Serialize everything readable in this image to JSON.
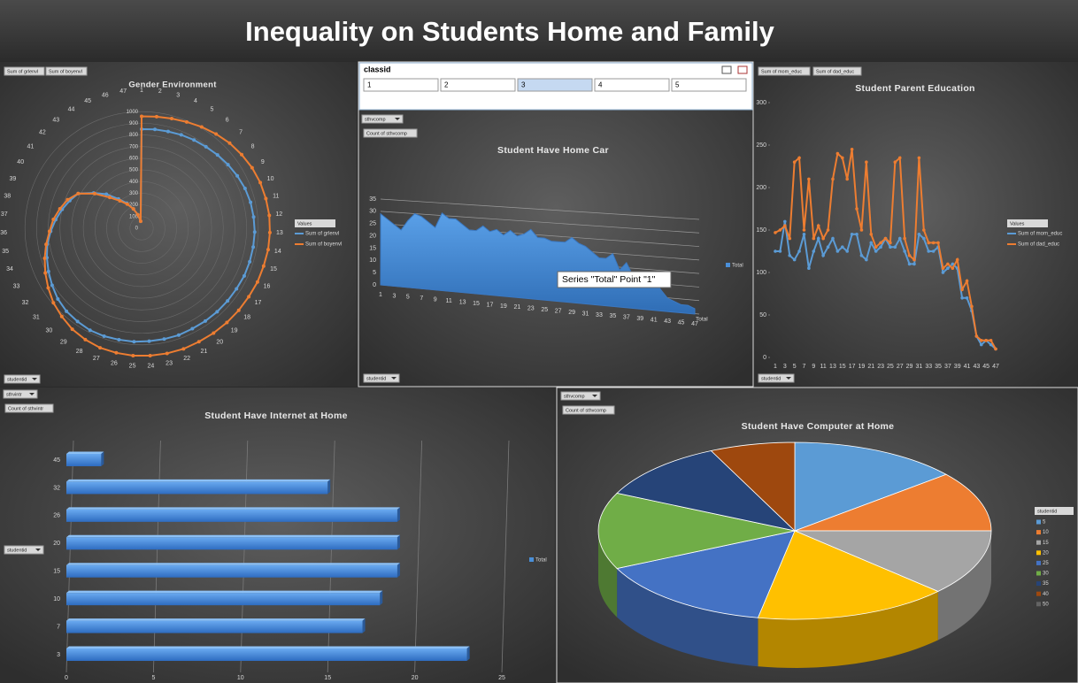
{
  "header": {
    "title": "Inequality on Students Home and Family"
  },
  "slicer": {
    "title": "classid",
    "items": [
      "1",
      "2",
      "3",
      "4",
      "5"
    ],
    "selected": "3"
  },
  "chart_data": [
    {
      "type": "radar",
      "title": "Gender Environment",
      "buttons": [
        "Sum of grlenvl",
        "Sum of boyenvl",
        "studentid"
      ],
      "legend_title": "Values",
      "categories": [
        1,
        2,
        3,
        4,
        5,
        6,
        7,
        8,
        9,
        10,
        11,
        12,
        13,
        14,
        15,
        16,
        17,
        18,
        19,
        20,
        21,
        22,
        23,
        24,
        25,
        26,
        27,
        28,
        29,
        30,
        31,
        32,
        33,
        34,
        35,
        36,
        37,
        38,
        39,
        40,
        41,
        42,
        43,
        44,
        45,
        46,
        47
      ],
      "ylim": [
        0,
        1100
      ],
      "yticks": [
        0,
        100,
        200,
        300,
        400,
        500,
        600,
        700,
        800,
        900,
        1000
      ],
      "series": [
        {
          "name": "Sum of grlenvl",
          "color": "#5b9bd5",
          "values": [
            850,
            855,
            860,
            870,
            880,
            890,
            905,
            920,
            935,
            950,
            960,
            965,
            970,
            970,
            970,
            970,
            965,
            965,
            965,
            965,
            965,
            970,
            970,
            970,
            975,
            975,
            980,
            980,
            970,
            960,
            940,
            910,
            880,
            850,
            820,
            780,
            740,
            700,
            660,
            620,
            510,
            420,
            320,
            250,
            180,
            120,
            60
          ]
        },
        {
          "name": "Sum of boyenvl",
          "color": "#ed7d31",
          "values": [
            960,
            965,
            975,
            990,
            1010,
            1030,
            1050,
            1065,
            1080,
            1090,
            1095,
            1100,
            1100,
            1100,
            1095,
            1095,
            1090,
            1090,
            1090,
            1090,
            1090,
            1095,
            1095,
            1095,
            1095,
            1090,
            1085,
            1070,
            1050,
            1020,
            990,
            950,
            910,
            870,
            830,
            790,
            760,
            720,
            680,
            620,
            500,
            380,
            300,
            240,
            180,
            120,
            60
          ]
        }
      ]
    },
    {
      "type": "area",
      "title": "Student Have Home Car",
      "buttons": [
        "sthvcomp",
        "Count of sthvcomp",
        "studentid"
      ],
      "tooltip": "Series \"Total\" Point \"1\"",
      "categories": [
        1,
        null,
        3,
        null,
        5,
        null,
        7,
        null,
        9,
        null,
        11,
        null,
        13,
        null,
        15,
        null,
        17,
        null,
        19,
        null,
        21,
        null,
        23,
        null,
        25,
        null,
        27,
        null,
        29,
        null,
        31,
        null,
        33,
        null,
        35,
        null,
        37,
        null,
        39,
        null,
        41,
        null,
        43,
        null,
        45,
        null,
        47
      ],
      "ylim": [
        0,
        35
      ],
      "yticks": [
        0,
        5,
        10,
        15,
        20,
        25,
        30,
        35
      ],
      "grid": true,
      "series": [
        {
          "name": "Total",
          "color": "#4a8fd8",
          "values": [
            29,
            27,
            25,
            23,
            27,
            30,
            29,
            27,
            25,
            31,
            29,
            29,
            27,
            25,
            25,
            27,
            25,
            26,
            24,
            26,
            24,
            25,
            27,
            24,
            24,
            23,
            23,
            23,
            25,
            23,
            22,
            20,
            18,
            18,
            20,
            14,
            17,
            12,
            14,
            10,
            12,
            8,
            5,
            4,
            3,
            3,
            2
          ]
        }
      ]
    },
    {
      "type": "line",
      "title": "Student Parent Education",
      "buttons": [
        "Sum of mom_educ",
        "Sum of dad_educ",
        "studentid"
      ],
      "legend_title": "Values",
      "categories": [
        1,
        null,
        3,
        null,
        5,
        null,
        7,
        null,
        9,
        null,
        11,
        null,
        13,
        null,
        15,
        null,
        17,
        null,
        19,
        null,
        21,
        null,
        23,
        null,
        25,
        null,
        27,
        null,
        29,
        null,
        31,
        null,
        33,
        null,
        35,
        null,
        37,
        null,
        39,
        null,
        41,
        null,
        43,
        null,
        45,
        null,
        47
      ],
      "ylim": [
        0,
        300
      ],
      "yticks": [
        0,
        50,
        100,
        150,
        200,
        250,
        300
      ],
      "series": [
        {
          "name": "Sum of mom_educ",
          "color": "#5b9bd5",
          "values": [
            125,
            125,
            160,
            120,
            115,
            125,
            145,
            105,
            125,
            140,
            120,
            130,
            140,
            125,
            130,
            125,
            145,
            145,
            120,
            115,
            135,
            125,
            130,
            140,
            130,
            130,
            140,
            125,
            110,
            110,
            145,
            140,
            125,
            125,
            130,
            100,
            105,
            110,
            105,
            70,
            70,
            55,
            25,
            15,
            20,
            15,
            10
          ]
        },
        {
          "name": "Sum of dad_educ",
          "color": "#ed7d31",
          "values": [
            147,
            150,
            155,
            140,
            230,
            235,
            150,
            210,
            140,
            155,
            140,
            150,
            210,
            240,
            235,
            210,
            245,
            175,
            150,
            230,
            145,
            130,
            135,
            140,
            135,
            230,
            235,
            140,
            120,
            115,
            235,
            150,
            135,
            135,
            135,
            105,
            110,
            105,
            115,
            80,
            90,
            60,
            25,
            20,
            20,
            20,
            10
          ]
        }
      ]
    },
    {
      "type": "hbar",
      "title": "Student Have Internet at Home",
      "buttons": [
        "sthvintr",
        "Count of sthvintr",
        "studentid"
      ],
      "categories": [
        3,
        7,
        10,
        15,
        20,
        26,
        32,
        45
      ],
      "xlim": [
        0,
        25
      ],
      "xticks": [
        0,
        5,
        10,
        15,
        20,
        25
      ],
      "grid": true,
      "series": [
        {
          "name": "Total",
          "color": "#4a8fd8",
          "values": [
            23,
            17,
            18,
            19,
            19,
            19,
            15,
            2
          ]
        }
      ]
    },
    {
      "type": "pie",
      "title": "Student Have Computer at Home",
      "buttons": [
        "sthvcomp",
        "Count of sthvcomp"
      ],
      "legend_title": "studentid",
      "categories": [
        5,
        10,
        15,
        20,
        25,
        30,
        35,
        40,
        50
      ],
      "values": [
        14,
        11,
        12,
        16,
        15,
        14,
        11,
        7,
        0
      ],
      "colors": [
        "#5b9bd5",
        "#ed7d31",
        "#a5a5a5",
        "#ffc000",
        "#4472c4",
        "#70ad47",
        "#264478",
        "#9e480e",
        "#636363"
      ]
    }
  ]
}
